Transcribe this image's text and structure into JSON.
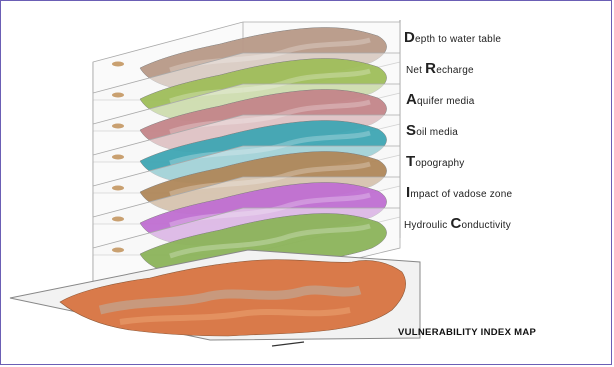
{
  "layers": [
    {
      "initial": "D",
      "rest": "epth to water table",
      "color": "#b89a88"
    },
    {
      "initial": "",
      "rest": "Net ",
      "initial2": "R",
      "rest2": "echarge",
      "color": "#9fbe5a"
    },
    {
      "initial": "A",
      "rest": "quifer media",
      "color": "#c4868a"
    },
    {
      "initial": "S",
      "rest": "oil media",
      "color": "#3fa6b4"
    },
    {
      "initial": "T",
      "rest": "opography",
      "color": "#b0885a"
    },
    {
      "initial": "I",
      "rest": "mpact of vadose zone",
      "color": "#c06fd2"
    },
    {
      "initial": "",
      "rest": "Hydroulic ",
      "initial2": "C",
      "rest2": "onductivity",
      "color": "#8cb45a"
    }
  ],
  "base": {
    "title": "VULNERABILITY INDEX MAP",
    "color": "#d97a4a"
  }
}
